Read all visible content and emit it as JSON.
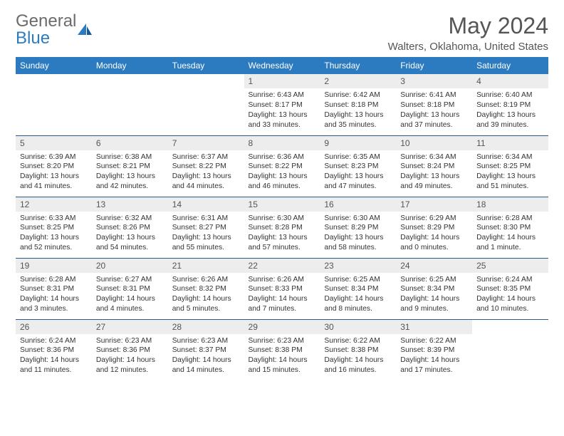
{
  "logo": {
    "general": "General",
    "blue": "Blue"
  },
  "title": "May 2024",
  "location": "Walters, Oklahoma, United States",
  "colors": {
    "header_bg": "#2c7bc0",
    "header_text": "#ffffff",
    "daynum_bg": "#ededed",
    "cell_border": "#2c5a8a",
    "body_text": "#333333",
    "title_text": "#555555"
  },
  "day_headers": [
    "Sunday",
    "Monday",
    "Tuesday",
    "Wednesday",
    "Thursday",
    "Friday",
    "Saturday"
  ],
  "weeks": [
    [
      null,
      null,
      null,
      {
        "n": "1",
        "sunrise": "6:43 AM",
        "sunset": "8:17 PM",
        "daylight": "13 hours and 33 minutes."
      },
      {
        "n": "2",
        "sunrise": "6:42 AM",
        "sunset": "8:18 PM",
        "daylight": "13 hours and 35 minutes."
      },
      {
        "n": "3",
        "sunrise": "6:41 AM",
        "sunset": "8:18 PM",
        "daylight": "13 hours and 37 minutes."
      },
      {
        "n": "4",
        "sunrise": "6:40 AM",
        "sunset": "8:19 PM",
        "daylight": "13 hours and 39 minutes."
      }
    ],
    [
      {
        "n": "5",
        "sunrise": "6:39 AM",
        "sunset": "8:20 PM",
        "daylight": "13 hours and 41 minutes."
      },
      {
        "n": "6",
        "sunrise": "6:38 AM",
        "sunset": "8:21 PM",
        "daylight": "13 hours and 42 minutes."
      },
      {
        "n": "7",
        "sunrise": "6:37 AM",
        "sunset": "8:22 PM",
        "daylight": "13 hours and 44 minutes."
      },
      {
        "n": "8",
        "sunrise": "6:36 AM",
        "sunset": "8:22 PM",
        "daylight": "13 hours and 46 minutes."
      },
      {
        "n": "9",
        "sunrise": "6:35 AM",
        "sunset": "8:23 PM",
        "daylight": "13 hours and 47 minutes."
      },
      {
        "n": "10",
        "sunrise": "6:34 AM",
        "sunset": "8:24 PM",
        "daylight": "13 hours and 49 minutes."
      },
      {
        "n": "11",
        "sunrise": "6:34 AM",
        "sunset": "8:25 PM",
        "daylight": "13 hours and 51 minutes."
      }
    ],
    [
      {
        "n": "12",
        "sunrise": "6:33 AM",
        "sunset": "8:25 PM",
        "daylight": "13 hours and 52 minutes."
      },
      {
        "n": "13",
        "sunrise": "6:32 AM",
        "sunset": "8:26 PM",
        "daylight": "13 hours and 54 minutes."
      },
      {
        "n": "14",
        "sunrise": "6:31 AM",
        "sunset": "8:27 PM",
        "daylight": "13 hours and 55 minutes."
      },
      {
        "n": "15",
        "sunrise": "6:30 AM",
        "sunset": "8:28 PM",
        "daylight": "13 hours and 57 minutes."
      },
      {
        "n": "16",
        "sunrise": "6:30 AM",
        "sunset": "8:29 PM",
        "daylight": "13 hours and 58 minutes."
      },
      {
        "n": "17",
        "sunrise": "6:29 AM",
        "sunset": "8:29 PM",
        "daylight": "14 hours and 0 minutes."
      },
      {
        "n": "18",
        "sunrise": "6:28 AM",
        "sunset": "8:30 PM",
        "daylight": "14 hours and 1 minute."
      }
    ],
    [
      {
        "n": "19",
        "sunrise": "6:28 AM",
        "sunset": "8:31 PM",
        "daylight": "14 hours and 3 minutes."
      },
      {
        "n": "20",
        "sunrise": "6:27 AM",
        "sunset": "8:31 PM",
        "daylight": "14 hours and 4 minutes."
      },
      {
        "n": "21",
        "sunrise": "6:26 AM",
        "sunset": "8:32 PM",
        "daylight": "14 hours and 5 minutes."
      },
      {
        "n": "22",
        "sunrise": "6:26 AM",
        "sunset": "8:33 PM",
        "daylight": "14 hours and 7 minutes."
      },
      {
        "n": "23",
        "sunrise": "6:25 AM",
        "sunset": "8:34 PM",
        "daylight": "14 hours and 8 minutes."
      },
      {
        "n": "24",
        "sunrise": "6:25 AM",
        "sunset": "8:34 PM",
        "daylight": "14 hours and 9 minutes."
      },
      {
        "n": "25",
        "sunrise": "6:24 AM",
        "sunset": "8:35 PM",
        "daylight": "14 hours and 10 minutes."
      }
    ],
    [
      {
        "n": "26",
        "sunrise": "6:24 AM",
        "sunset": "8:36 PM",
        "daylight": "14 hours and 11 minutes."
      },
      {
        "n": "27",
        "sunrise": "6:23 AM",
        "sunset": "8:36 PM",
        "daylight": "14 hours and 12 minutes."
      },
      {
        "n": "28",
        "sunrise": "6:23 AM",
        "sunset": "8:37 PM",
        "daylight": "14 hours and 14 minutes."
      },
      {
        "n": "29",
        "sunrise": "6:23 AM",
        "sunset": "8:38 PM",
        "daylight": "14 hours and 15 minutes."
      },
      {
        "n": "30",
        "sunrise": "6:22 AM",
        "sunset": "8:38 PM",
        "daylight": "14 hours and 16 minutes."
      },
      {
        "n": "31",
        "sunrise": "6:22 AM",
        "sunset": "8:39 PM",
        "daylight": "14 hours and 17 minutes."
      },
      null
    ]
  ],
  "labels": {
    "sunrise": "Sunrise: ",
    "sunset": "Sunset: ",
    "daylight": "Daylight: "
  }
}
